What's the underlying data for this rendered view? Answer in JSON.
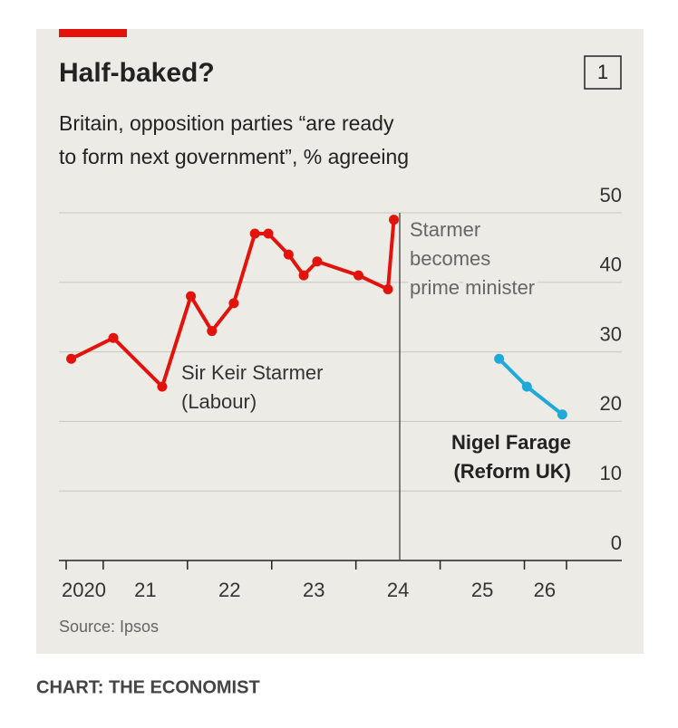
{
  "chart_data": {
    "type": "line",
    "title": "Half-baked?",
    "chart_number": "1",
    "subtitle_lines": [
      "Britain, opposition parties “are ready",
      "to form next government”, % agreeing"
    ],
    "source": "Source: Ipsos",
    "credit": "CHART: THE ECONOMIST",
    "series": [
      {
        "name_lines": [
          "Sir Keir Starmer",
          "(Labour)"
        ],
        "color": "#e3120b",
        "x": [
          2020.62,
          2021.12,
          2021.7,
          2022.04,
          2022.29,
          2022.55,
          2022.8,
          2022.96,
          2023.2,
          2023.38,
          2023.54,
          2024.03,
          2024.38,
          2024.45
        ],
        "values": [
          29,
          32,
          25,
          38,
          33,
          37,
          47,
          47,
          44,
          41,
          43,
          41,
          39,
          49
        ]
      },
      {
        "name_lines": [
          "Nigel Farage",
          "(Reform UK)"
        ],
        "color": "#1fa9d8",
        "x": [
          2025.7,
          2026.03,
          2026.45
        ],
        "values": [
          29,
          25,
          21
        ]
      }
    ],
    "event": {
      "x": 2024.52,
      "label_lines": [
        "Starmer",
        "becomes",
        "prime minister"
      ]
    },
    "xlim": [
      2020.56,
      2026.5
    ],
    "xticks": [
      2021,
      2022,
      2023,
      2024,
      2025,
      2026
    ],
    "xtick_labels": [
      {
        "value": 2020.77,
        "label": "2020"
      },
      {
        "value": 2021.5,
        "label": "21"
      },
      {
        "value": 2022.5,
        "label": "22"
      },
      {
        "value": 2023.5,
        "label": "23"
      },
      {
        "value": 2024.5,
        "label": "24"
      },
      {
        "value": 2025.5,
        "label": "25"
      },
      {
        "value": 2026.24,
        "label": "26"
      }
    ],
    "ylim": [
      0,
      50
    ],
    "yticks": [
      0,
      10,
      20,
      30,
      40,
      50
    ],
    "grid": true
  }
}
